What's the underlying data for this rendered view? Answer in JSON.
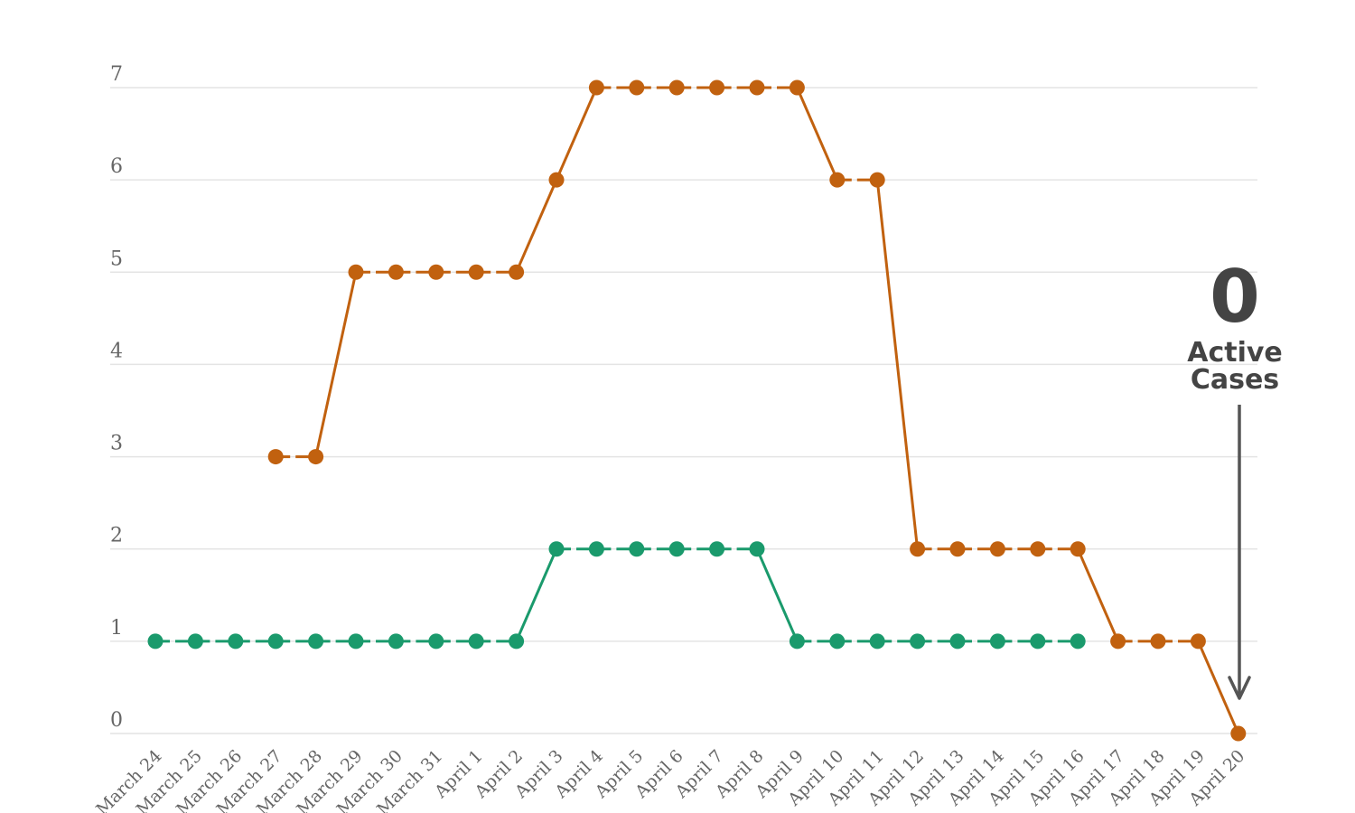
{
  "chart_data": {
    "type": "line",
    "title": "",
    "xlabel": "",
    "ylabel": "",
    "ylim": [
      0,
      7
    ],
    "yticks": [
      0,
      1,
      2,
      3,
      4,
      5,
      6,
      7
    ],
    "grid": true,
    "categories": [
      "March 24",
      "March 25",
      "March 26",
      "March 27",
      "March 28",
      "March 29",
      "March 30",
      "March 31",
      "April 1",
      "April 2",
      "April 3",
      "April 4",
      "April 5",
      "April 6",
      "April 7",
      "April 8",
      "April 9",
      "April 10",
      "April 11",
      "April 12",
      "April 13",
      "April 14",
      "April 15",
      "April 16",
      "April 17",
      "April 18",
      "April 19",
      "April 20"
    ],
    "series": [
      {
        "color": "#1a9a6c",
        "values": [
          1,
          1,
          1,
          1,
          1,
          1,
          1,
          1,
          1,
          1,
          2,
          2,
          2,
          2,
          2,
          2,
          1,
          1,
          1,
          1,
          1,
          1,
          1,
          1,
          null,
          null,
          null,
          null
        ]
      },
      {
        "color": "#c1610f",
        "values": [
          null,
          null,
          null,
          3,
          3,
          5,
          5,
          5,
          5,
          5,
          6,
          7,
          7,
          7,
          7,
          7,
          7,
          6,
          6,
          2,
          2,
          2,
          2,
          2,
          1,
          1,
          1,
          0
        ]
      }
    ],
    "annotation": {
      "value": "0",
      "line1": "Active",
      "line2": "Cases",
      "arrow_color": "#555555"
    }
  }
}
